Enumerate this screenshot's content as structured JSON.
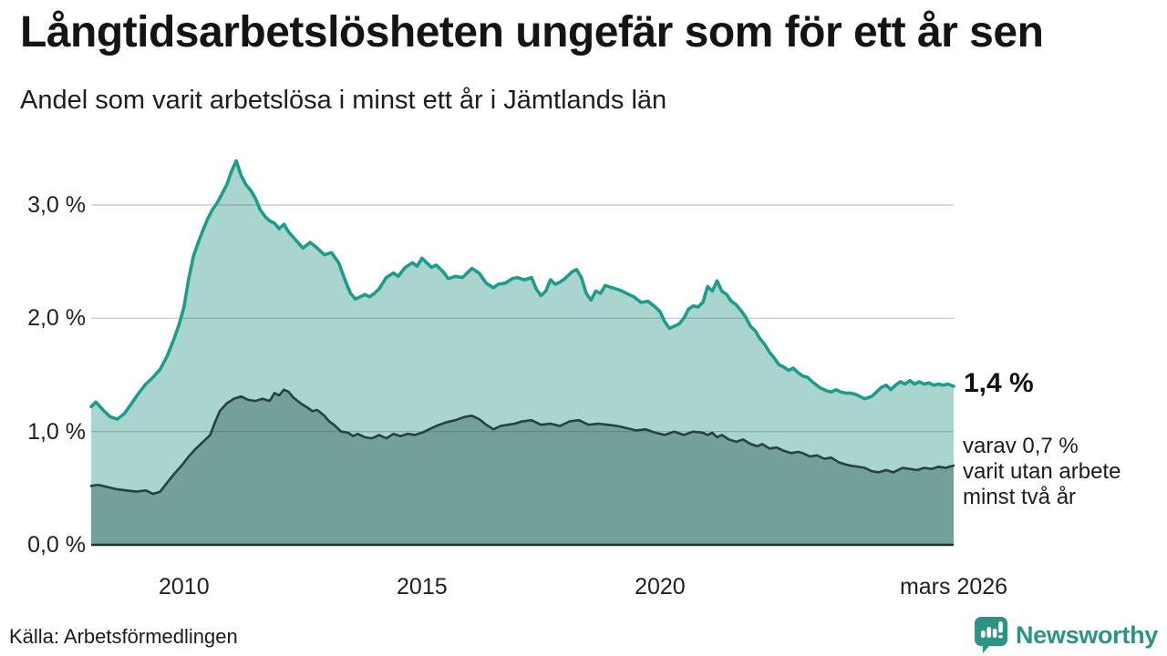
{
  "header": {
    "title": "Långtidsarbetslösheten ungefär som för ett år sen",
    "subtitle": "Andel som varit arbetslösa i minst ett år i Jämtlands län"
  },
  "annotations": {
    "latest_value": "1,4 %",
    "secondary_note": "varav 0,7 %\nvarit utan arbete\nminst två år"
  },
  "footer": {
    "source": "Källa: Arbetsförmedlingen",
    "brand": "Newsworthy",
    "brand_icon": "newsworthy-pin-barchart-icon"
  },
  "colors": {
    "line_primary": "#1d9b8b",
    "fill_primary": "#a9d5ce",
    "line_secondary": "#26423e",
    "fill_secondary": "#73a09a",
    "gridline": "#d6d6d6",
    "axis_baseline": "#22302d",
    "text": "#161616",
    "brand_teal": "#2d9384"
  },
  "chart_data": {
    "type": "area",
    "title": "Långtidsarbetslösheten ungefär som för ett år sen",
    "subtitle": "Andel som varit arbetslösa i minst ett år i Jämtlands län",
    "ylabel": "",
    "xlabel": "",
    "grid": "horizontal-only",
    "legend_position": "right-annotations",
    "y_axis": {
      "range": [
        0,
        3.5
      ],
      "unit": "%",
      "ticks": [
        {
          "value": 0,
          "label": "0,0 %"
        },
        {
          "value": 1,
          "label": "1,0 %"
        },
        {
          "value": 2,
          "label": "2,0 %"
        },
        {
          "value": 3,
          "label": "3,0 %"
        }
      ],
      "gridlines": [
        1,
        2,
        3
      ]
    },
    "x_axis": {
      "range": [
        2008.05,
        2026.17
      ],
      "ticks": [
        {
          "value": 2010,
          "label": "2010"
        },
        {
          "value": 2015,
          "label": "2015"
        },
        {
          "value": 2020,
          "label": "2020"
        },
        {
          "value": 2026.17,
          "label": "mars 2026"
        }
      ]
    },
    "series": [
      {
        "name": "Arbetslösa minst ett år",
        "latest_label": "1,4 %",
        "latest_value_pct": 1.4,
        "points": [
          [
            2008.05,
            1.22
          ],
          [
            2008.15,
            1.26
          ],
          [
            2008.3,
            1.19
          ],
          [
            2008.45,
            1.13
          ],
          [
            2008.6,
            1.11
          ],
          [
            2008.75,
            1.16
          ],
          [
            2008.9,
            1.25
          ],
          [
            2009.05,
            1.34
          ],
          [
            2009.2,
            1.42
          ],
          [
            2009.35,
            1.48
          ],
          [
            2009.5,
            1.55
          ],
          [
            2009.65,
            1.67
          ],
          [
            2009.8,
            1.83
          ],
          [
            2009.9,
            1.95
          ],
          [
            2010.0,
            2.1
          ],
          [
            2010.1,
            2.35
          ],
          [
            2010.2,
            2.55
          ],
          [
            2010.3,
            2.67
          ],
          [
            2010.4,
            2.78
          ],
          [
            2010.5,
            2.88
          ],
          [
            2010.6,
            2.96
          ],
          [
            2010.7,
            3.02
          ],
          [
            2010.8,
            3.1
          ],
          [
            2010.9,
            3.18
          ],
          [
            2011.0,
            3.3
          ],
          [
            2011.1,
            3.39
          ],
          [
            2011.2,
            3.26
          ],
          [
            2011.3,
            3.18
          ],
          [
            2011.4,
            3.13
          ],
          [
            2011.5,
            3.06
          ],
          [
            2011.6,
            2.96
          ],
          [
            2011.7,
            2.9
          ],
          [
            2011.8,
            2.86
          ],
          [
            2011.9,
            2.84
          ],
          [
            2012.0,
            2.79
          ],
          [
            2012.1,
            2.83
          ],
          [
            2012.2,
            2.76
          ],
          [
            2012.35,
            2.69
          ],
          [
            2012.5,
            2.62
          ],
          [
            2012.65,
            2.67
          ],
          [
            2012.8,
            2.62
          ],
          [
            2012.95,
            2.56
          ],
          [
            2013.1,
            2.58
          ],
          [
            2013.25,
            2.49
          ],
          [
            2013.4,
            2.32
          ],
          [
            2013.5,
            2.22
          ],
          [
            2013.6,
            2.17
          ],
          [
            2013.7,
            2.19
          ],
          [
            2013.8,
            2.21
          ],
          [
            2013.9,
            2.19
          ],
          [
            2014.0,
            2.22
          ],
          [
            2014.1,
            2.26
          ],
          [
            2014.25,
            2.36
          ],
          [
            2014.4,
            2.4
          ],
          [
            2014.5,
            2.37
          ],
          [
            2014.65,
            2.45
          ],
          [
            2014.8,
            2.49
          ],
          [
            2014.9,
            2.46
          ],
          [
            2015.0,
            2.53
          ],
          [
            2015.1,
            2.49
          ],
          [
            2015.2,
            2.45
          ],
          [
            2015.3,
            2.47
          ],
          [
            2015.45,
            2.41
          ],
          [
            2015.55,
            2.35
          ],
          [
            2015.7,
            2.37
          ],
          [
            2015.85,
            2.36
          ],
          [
            2015.95,
            2.4
          ],
          [
            2016.05,
            2.44
          ],
          [
            2016.2,
            2.4
          ],
          [
            2016.35,
            2.31
          ],
          [
            2016.5,
            2.27
          ],
          [
            2016.6,
            2.3
          ],
          [
            2016.75,
            2.31
          ],
          [
            2016.9,
            2.35
          ],
          [
            2017.0,
            2.36
          ],
          [
            2017.15,
            2.34
          ],
          [
            2017.3,
            2.36
          ],
          [
            2017.4,
            2.26
          ],
          [
            2017.5,
            2.2
          ],
          [
            2017.6,
            2.24
          ],
          [
            2017.7,
            2.34
          ],
          [
            2017.8,
            2.3
          ],
          [
            2017.9,
            2.32
          ],
          [
            2018.0,
            2.35
          ],
          [
            2018.15,
            2.41
          ],
          [
            2018.25,
            2.43
          ],
          [
            2018.35,
            2.36
          ],
          [
            2018.45,
            2.22
          ],
          [
            2018.55,
            2.16
          ],
          [
            2018.65,
            2.24
          ],
          [
            2018.75,
            2.22
          ],
          [
            2018.85,
            2.29
          ],
          [
            2019.0,
            2.27
          ],
          [
            2019.15,
            2.25
          ],
          [
            2019.3,
            2.22
          ],
          [
            2019.45,
            2.19
          ],
          [
            2019.6,
            2.14
          ],
          [
            2019.75,
            2.15
          ],
          [
            2019.9,
            2.1
          ],
          [
            2020.0,
            2.06
          ],
          [
            2020.1,
            1.97
          ],
          [
            2020.2,
            1.91
          ],
          [
            2020.3,
            1.93
          ],
          [
            2020.4,
            1.95
          ],
          [
            2020.5,
            2.0
          ],
          [
            2020.6,
            2.08
          ],
          [
            2020.7,
            2.11
          ],
          [
            2020.8,
            2.1
          ],
          [
            2020.9,
            2.14
          ],
          [
            2021.0,
            2.28
          ],
          [
            2021.1,
            2.24
          ],
          [
            2021.2,
            2.33
          ],
          [
            2021.3,
            2.24
          ],
          [
            2021.4,
            2.21
          ],
          [
            2021.5,
            2.15
          ],
          [
            2021.6,
            2.12
          ],
          [
            2021.7,
            2.07
          ],
          [
            2021.8,
            2.01
          ],
          [
            2021.9,
            1.93
          ],
          [
            2022.0,
            1.89
          ],
          [
            2022.1,
            1.82
          ],
          [
            2022.2,
            1.77
          ],
          [
            2022.3,
            1.7
          ],
          [
            2022.4,
            1.65
          ],
          [
            2022.5,
            1.59
          ],
          [
            2022.6,
            1.57
          ],
          [
            2022.7,
            1.54
          ],
          [
            2022.8,
            1.56
          ],
          [
            2022.9,
            1.52
          ],
          [
            2023.0,
            1.49
          ],
          [
            2023.1,
            1.48
          ],
          [
            2023.2,
            1.44
          ],
          [
            2023.35,
            1.39
          ],
          [
            2023.5,
            1.36
          ],
          [
            2023.6,
            1.35
          ],
          [
            2023.7,
            1.37
          ],
          [
            2023.8,
            1.35
          ],
          [
            2023.9,
            1.34
          ],
          [
            2024.0,
            1.34
          ],
          [
            2024.1,
            1.33
          ],
          [
            2024.2,
            1.31
          ],
          [
            2024.3,
            1.29
          ],
          [
            2024.45,
            1.31
          ],
          [
            2024.55,
            1.35
          ],
          [
            2024.65,
            1.39
          ],
          [
            2024.75,
            1.41
          ],
          [
            2024.85,
            1.37
          ],
          [
            2024.95,
            1.41
          ],
          [
            2025.05,
            1.44
          ],
          [
            2025.15,
            1.42
          ],
          [
            2025.25,
            1.45
          ],
          [
            2025.35,
            1.42
          ],
          [
            2025.45,
            1.44
          ],
          [
            2025.55,
            1.42
          ],
          [
            2025.65,
            1.43
          ],
          [
            2025.75,
            1.41
          ],
          [
            2025.85,
            1.42
          ],
          [
            2025.95,
            1.41
          ],
          [
            2026.05,
            1.42
          ],
          [
            2026.17,
            1.4
          ]
        ]
      },
      {
        "name": "Utan arbete minst två år",
        "latest_label": "0,7 %",
        "latest_value_pct": 0.7,
        "points": [
          [
            2008.05,
            0.52
          ],
          [
            2008.2,
            0.53
          ],
          [
            2008.4,
            0.51
          ],
          [
            2008.6,
            0.49
          ],
          [
            2008.8,
            0.48
          ],
          [
            2009.0,
            0.47
          ],
          [
            2009.2,
            0.48
          ],
          [
            2009.35,
            0.45
          ],
          [
            2009.5,
            0.47
          ],
          [
            2009.65,
            0.55
          ],
          [
            2009.8,
            0.63
          ],
          [
            2009.95,
            0.7
          ],
          [
            2010.1,
            0.78
          ],
          [
            2010.25,
            0.85
          ],
          [
            2010.4,
            0.91
          ],
          [
            2010.55,
            0.97
          ],
          [
            2010.65,
            1.08
          ],
          [
            2010.75,
            1.18
          ],
          [
            2010.9,
            1.25
          ],
          [
            2011.05,
            1.29
          ],
          [
            2011.2,
            1.31
          ],
          [
            2011.35,
            1.28
          ],
          [
            2011.5,
            1.27
          ],
          [
            2011.65,
            1.29
          ],
          [
            2011.8,
            1.27
          ],
          [
            2011.9,
            1.34
          ],
          [
            2012.0,
            1.32
          ],
          [
            2012.1,
            1.37
          ],
          [
            2012.2,
            1.35
          ],
          [
            2012.3,
            1.3
          ],
          [
            2012.45,
            1.25
          ],
          [
            2012.6,
            1.21
          ],
          [
            2012.7,
            1.18
          ],
          [
            2012.8,
            1.19
          ],
          [
            2012.95,
            1.14
          ],
          [
            2013.05,
            1.09
          ],
          [
            2013.15,
            1.06
          ],
          [
            2013.3,
            1.0
          ],
          [
            2013.45,
            0.99
          ],
          [
            2013.55,
            0.96
          ],
          [
            2013.65,
            0.98
          ],
          [
            2013.8,
            0.95
          ],
          [
            2013.95,
            0.94
          ],
          [
            2014.1,
            0.97
          ],
          [
            2014.25,
            0.94
          ],
          [
            2014.4,
            0.98
          ],
          [
            2014.55,
            0.96
          ],
          [
            2014.7,
            0.98
          ],
          [
            2014.85,
            0.97
          ],
          [
            2015.0,
            0.99
          ],
          [
            2015.15,
            1.02
          ],
          [
            2015.3,
            1.05
          ],
          [
            2015.5,
            1.08
          ],
          [
            2015.7,
            1.1
          ],
          [
            2015.9,
            1.13
          ],
          [
            2016.05,
            1.14
          ],
          [
            2016.2,
            1.11
          ],
          [
            2016.35,
            1.06
          ],
          [
            2016.5,
            1.02
          ],
          [
            2016.65,
            1.05
          ],
          [
            2016.8,
            1.06
          ],
          [
            2016.95,
            1.07
          ],
          [
            2017.1,
            1.09
          ],
          [
            2017.3,
            1.1
          ],
          [
            2017.5,
            1.06
          ],
          [
            2017.7,
            1.07
          ],
          [
            2017.9,
            1.05
          ],
          [
            2018.1,
            1.09
          ],
          [
            2018.3,
            1.1
          ],
          [
            2018.5,
            1.06
          ],
          [
            2018.7,
            1.07
          ],
          [
            2018.9,
            1.06
          ],
          [
            2019.1,
            1.05
          ],
          [
            2019.3,
            1.03
          ],
          [
            2019.5,
            1.01
          ],
          [
            2019.7,
            1.02
          ],
          [
            2019.9,
            0.99
          ],
          [
            2020.1,
            0.97
          ],
          [
            2020.3,
            1.0
          ],
          [
            2020.5,
            0.97
          ],
          [
            2020.7,
            1.0
          ],
          [
            2020.9,
            0.99
          ],
          [
            2021.0,
            0.97
          ],
          [
            2021.1,
            0.99
          ],
          [
            2021.2,
            0.95
          ],
          [
            2021.3,
            0.97
          ],
          [
            2021.45,
            0.93
          ],
          [
            2021.6,
            0.91
          ],
          [
            2021.75,
            0.93
          ],
          [
            2021.9,
            0.89
          ],
          [
            2022.05,
            0.87
          ],
          [
            2022.15,
            0.89
          ],
          [
            2022.3,
            0.85
          ],
          [
            2022.45,
            0.86
          ],
          [
            2022.6,
            0.83
          ],
          [
            2022.75,
            0.81
          ],
          [
            2022.9,
            0.82
          ],
          [
            2023.0,
            0.81
          ],
          [
            2023.15,
            0.78
          ],
          [
            2023.3,
            0.79
          ],
          [
            2023.45,
            0.76
          ],
          [
            2023.6,
            0.77
          ],
          [
            2023.75,
            0.73
          ],
          [
            2023.9,
            0.71
          ],
          [
            2024.0,
            0.7
          ],
          [
            2024.15,
            0.69
          ],
          [
            2024.3,
            0.68
          ],
          [
            2024.45,
            0.65
          ],
          [
            2024.6,
            0.64
          ],
          [
            2024.75,
            0.66
          ],
          [
            2024.9,
            0.64
          ],
          [
            2025.0,
            0.66
          ],
          [
            2025.1,
            0.68
          ],
          [
            2025.25,
            0.67
          ],
          [
            2025.4,
            0.66
          ],
          [
            2025.55,
            0.68
          ],
          [
            2025.7,
            0.67
          ],
          [
            2025.85,
            0.69
          ],
          [
            2026.0,
            0.68
          ],
          [
            2026.17,
            0.7
          ]
        ]
      }
    ]
  }
}
